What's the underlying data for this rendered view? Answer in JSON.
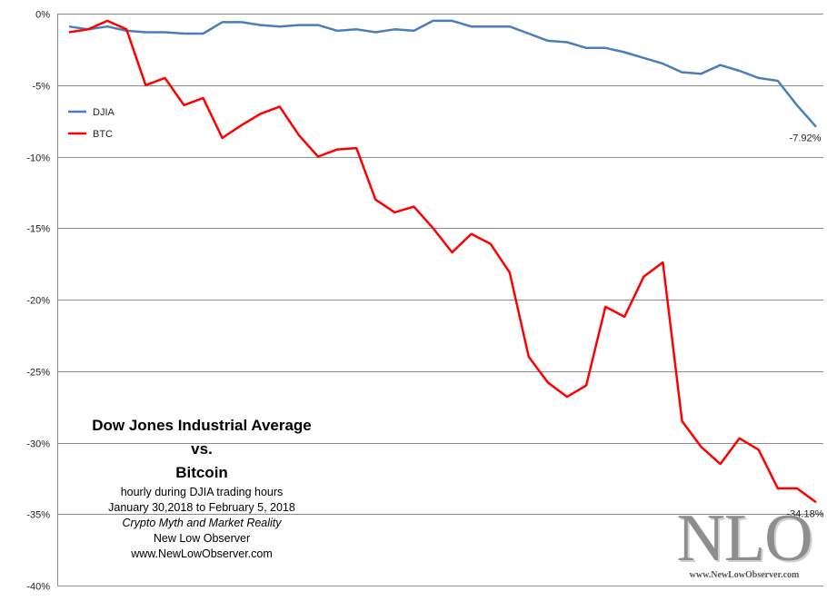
{
  "chart_data": {
    "type": "line",
    "ylim": [
      -40,
      0
    ],
    "y_ticks": [
      "0%",
      "-5%",
      "-10%",
      "-15%",
      "-20%",
      "-25%",
      "-30%",
      "-35%",
      "-40%"
    ],
    "y_tick_values": [
      0,
      -5,
      -10,
      -15,
      -20,
      -25,
      -30,
      -35,
      -40
    ],
    "grid": true,
    "legend_position": "top-left",
    "series": [
      {
        "name": "DJIA",
        "color": "#4a7ebb",
        "values": [
          -0.9,
          -1.1,
          -0.9,
          -1.2,
          -1.3,
          -1.3,
          -1.4,
          -1.4,
          -0.6,
          -0.6,
          -0.8,
          -0.9,
          -0.8,
          -0.8,
          -1.2,
          -1.1,
          -1.3,
          -1.1,
          -1.2,
          -0.5,
          -0.5,
          -0.9,
          -0.9,
          -0.9,
          -1.4,
          -1.9,
          -2.0,
          -2.4,
          -2.4,
          -2.7,
          -3.1,
          -3.5,
          -4.1,
          -4.2,
          -3.6,
          -4.0,
          -4.5,
          -4.7,
          -6.4,
          -7.92
        ],
        "end_label": "-7.92%"
      },
      {
        "name": "BTC",
        "color": "#ff0000",
        "values": [
          -1.3,
          -1.1,
          -0.5,
          -1.1,
          -5.0,
          -4.5,
          -6.4,
          -5.9,
          -8.7,
          -7.8,
          -7.0,
          -6.5,
          -8.5,
          -10.0,
          -9.5,
          -9.4,
          -13.0,
          -13.9,
          -13.5,
          -15.0,
          -16.7,
          -15.4,
          -16.1,
          -18.1,
          -24.0,
          -25.8,
          -26.8,
          -26.0,
          -20.5,
          -21.2,
          -18.4,
          -17.4,
          -28.5,
          -30.3,
          -31.5,
          -29.7,
          -30.5,
          -33.2,
          -33.2,
          -34.18
        ],
        "end_label": "-34.18%"
      }
    ]
  },
  "title_block": {
    "line1": "Dow Jones Industrial Average",
    "line2": "vs.",
    "line3": "Bitcoin",
    "sub1": "hourly during DJIA trading hours",
    "sub2": "January 30,2018  to February 5, 2018",
    "sub3": "Crypto Myth and Market Reality",
    "sub4": "New Low Observer",
    "sub5": "www.NewLowObserver.com"
  },
  "logo": {
    "letters": "NLO",
    "url": "www.NewLowObserver.com"
  },
  "colors": {
    "grid": "#8c8c8c",
    "djia": "#4a7ebb",
    "btc": "#ff0000"
  }
}
